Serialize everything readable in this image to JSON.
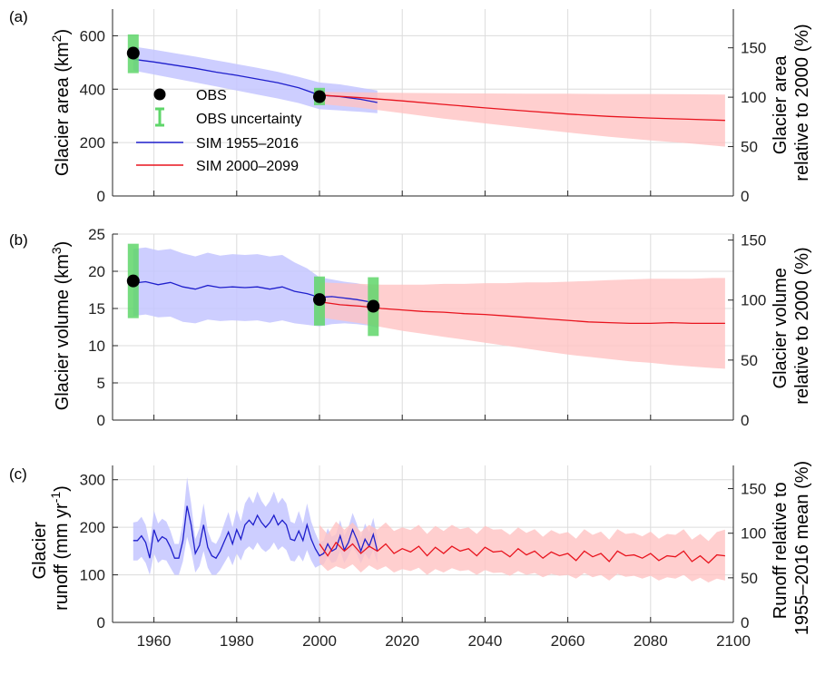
{
  "colors": {
    "sim_hist_line": "#1f1fcc",
    "sim_hist_band": "#c4c6ff",
    "sim_fut_line": "#e8141e",
    "sim_fut_band": "#ffc3c3",
    "obs_marker": "#000000",
    "obs_uncertainty": "#5fd66a"
  },
  "legend": {
    "obs": "OBS",
    "obs_uncertainty": "OBS uncertainty",
    "sim_hist": "SIM 1955–2016",
    "sim_fut": "SIM 2000–2099"
  },
  "chart_data": [
    {
      "type": "line",
      "panel_label": "(a)",
      "ylabel": "Glacier area (km²)",
      "ylabel_main": "Glacier area (km",
      "ylabel_sup": "2",
      "ylabel_end": ")",
      "y2label_line1": "Glacier area",
      "y2label_line2": "relative to 2000 (%)",
      "xlim": [
        1950,
        2100
      ],
      "ylim": [
        0,
        700
      ],
      "yticks": [
        0,
        200,
        400,
        600
      ],
      "y2lim": [
        0,
        189.2
      ],
      "y2ticks": [
        0,
        50,
        100,
        150
      ],
      "grid": true,
      "legend_position": "top-left",
      "obs": [
        {
          "x": 1955,
          "y": 535,
          "low": 460,
          "high": 605
        },
        {
          "x": 2000,
          "y": 372,
          "low": 340,
          "high": 405
        }
      ],
      "series": [
        {
          "name": "SIM 1955–2016",
          "color": "#1f1fcc",
          "band_color": "#c4c6ff",
          "x": [
            1955,
            1960,
            1965,
            1970,
            1975,
            1980,
            1985,
            1990,
            1995,
            2000,
            2005,
            2010,
            2014
          ],
          "y": [
            512,
            502,
            490,
            478,
            464,
            452,
            438,
            424,
            405,
            378,
            372,
            362,
            350
          ],
          "y_low": [
            470,
            455,
            440,
            425,
            410,
            395,
            380,
            365,
            348,
            325,
            320,
            315,
            310
          ],
          "y_high": [
            560,
            548,
            535,
            522,
            508,
            494,
            480,
            465,
            446,
            425,
            418,
            405,
            395
          ]
        },
        {
          "name": "SIM 2000–2099",
          "color": "#e8141e",
          "band_color": "#ffc3c3",
          "x": [
            2000,
            2010,
            2020,
            2030,
            2040,
            2050,
            2060,
            2070,
            2080,
            2090,
            2098
          ],
          "y": [
            378,
            368,
            356,
            343,
            330,
            318,
            307,
            298,
            292,
            287,
            283
          ],
          "y_low": [
            345,
            330,
            310,
            290,
            272,
            255,
            238,
            222,
            208,
            196,
            185
          ],
          "y_high": [
            390,
            388,
            386,
            385,
            384,
            383,
            383,
            382,
            382,
            381,
            380
          ]
        }
      ]
    },
    {
      "type": "line",
      "panel_label": "(b)",
      "ylabel": "Glacier volume (km³)",
      "ylabel_main": "Glacier volume (km",
      "ylabel_sup": "3",
      "ylabel_end": ")",
      "y2label_line1": "Glacier volume",
      "y2label_line2": "relative to 2000 (%)",
      "xlim": [
        1950,
        2100
      ],
      "ylim": [
        0,
        25
      ],
      "yticks": [
        0,
        5,
        10,
        15,
        20,
        25
      ],
      "y2lim": [
        0,
        155
      ],
      "y2ticks": [
        0,
        50,
        100,
        150
      ],
      "grid": true,
      "obs": [
        {
          "x": 1955,
          "y": 18.7,
          "low": 13.7,
          "high": 23.7
        },
        {
          "x": 2000,
          "y": 16.2,
          "low": 12.7,
          "high": 19.3
        },
        {
          "x": 2013,
          "y": 15.3,
          "low": 11.3,
          "high": 19.2
        }
      ],
      "series": [
        {
          "name": "SIM 1955–2016",
          "color": "#1f1fcc",
          "band_color": "#c4c6ff",
          "x": [
            1955,
            1958,
            1961,
            1964,
            1967,
            1970,
            1973,
            1976,
            1979,
            1982,
            1985,
            1988,
            1991,
            1994,
            1997,
            2000,
            2003,
            2006,
            2009,
            2012,
            2014
          ],
          "y": [
            18.4,
            18.6,
            18.2,
            18.5,
            17.9,
            17.6,
            18.1,
            17.8,
            17.9,
            17.8,
            17.9,
            17.6,
            17.9,
            17.3,
            17.0,
            16.5,
            16.6,
            16.4,
            16.2,
            15.9,
            15.4
          ],
          "y_low": [
            14.0,
            14.2,
            13.8,
            13.9,
            13.2,
            13.0,
            13.5,
            13.3,
            13.4,
            13.3,
            13.4,
            13.1,
            13.4,
            13.0,
            12.8,
            12.6,
            12.9,
            13.0,
            12.9,
            12.7,
            12.4
          ],
          "y_high": [
            23.0,
            23.2,
            22.8,
            23.0,
            22.4,
            22.0,
            22.5,
            22.1,
            22.3,
            22.2,
            22.3,
            22.0,
            22.2,
            21.2,
            20.4,
            19.2,
            18.9,
            18.6,
            18.4,
            18.0,
            17.6
          ]
        },
        {
          "name": "SIM 2000–2099",
          "color": "#e8141e",
          "band_color": "#ffc3c3",
          "x": [
            2000,
            2005,
            2010,
            2015,
            2020,
            2025,
            2030,
            2035,
            2040,
            2045,
            2050,
            2055,
            2060,
            2065,
            2070,
            2075,
            2080,
            2085,
            2090,
            2095,
            2098
          ],
          "y": [
            15.9,
            15.5,
            15.3,
            15.0,
            14.8,
            14.6,
            14.5,
            14.3,
            14.2,
            14.0,
            13.8,
            13.6,
            13.4,
            13.2,
            13.1,
            13.0,
            13.0,
            13.1,
            13.0,
            13.0,
            13.0
          ],
          "y_low": [
            13.8,
            13.4,
            13.0,
            12.5,
            12.0,
            11.6,
            11.2,
            10.8,
            10.4,
            10.0,
            9.6,
            9.2,
            8.8,
            8.5,
            8.2,
            7.9,
            7.7,
            7.4,
            7.2,
            7.0,
            6.9
          ],
          "y_high": [
            18.5,
            18.4,
            18.3,
            18.2,
            18.2,
            18.2,
            18.3,
            18.3,
            18.4,
            18.4,
            18.5,
            18.5,
            18.6,
            18.7,
            18.8,
            18.9,
            19.0,
            19.0,
            19.0,
            19.1,
            19.1
          ]
        }
      ]
    },
    {
      "type": "line",
      "panel_label": "(c)",
      "ylabel_line1": "Glacier",
      "ylabel_line2_main": "runoff (mm yr",
      "ylabel_line2_sup": "-1",
      "ylabel_line2_end": ")",
      "y2label_line1": "Runoff relative to",
      "y2label_line2": "1955–2016 mean (%)",
      "xlim": [
        1950,
        2100
      ],
      "ylim": [
        0,
        330
      ],
      "yticks": [
        0,
        100,
        200,
        300
      ],
      "y2lim": [
        0,
        176
      ],
      "y2ticks": [
        0,
        50,
        100,
        150
      ],
      "xticks": [
        1960,
        1980,
        2000,
        2020,
        2040,
        2060,
        2080,
        2100
      ],
      "grid": true,
      "series": [
        {
          "name": "SIM 1955–2016",
          "color": "#1f1fcc",
          "band_color": "#c4c6ff",
          "x": [
            1955,
            1956,
            1957,
            1958,
            1959,
            1960,
            1961,
            1962,
            1963,
            1964,
            1965,
            1966,
            1967,
            1968,
            1969,
            1970,
            1971,
            1972,
            1973,
            1974,
            1975,
            1976,
            1977,
            1978,
            1979,
            1980,
            1981,
            1982,
            1983,
            1984,
            1985,
            1986,
            1987,
            1988,
            1989,
            1990,
            1991,
            1992,
            1993,
            1994,
            1995,
            1996,
            1997,
            1998,
            1999,
            2000,
            2001,
            2002,
            2003,
            2004,
            2005,
            2006,
            2007,
            2008,
            2009,
            2010,
            2011,
            2012,
            2013,
            2014
          ],
          "y": [
            172,
            172,
            182,
            168,
            135,
            195,
            170,
            180,
            175,
            158,
            135,
            135,
            172,
            245,
            205,
            145,
            162,
            205,
            158,
            140,
            135,
            150,
            170,
            190,
            165,
            195,
            175,
            205,
            215,
            205,
            225,
            210,
            200,
            210,
            225,
            205,
            215,
            205,
            175,
            172,
            192,
            172,
            205,
            175,
            155,
            140,
            145,
            165,
            150,
            155,
            182,
            152,
            168,
            195,
            175,
            150,
            175,
            160,
            185,
            150
          ],
          "y_low": [
            130,
            130,
            138,
            125,
            100,
            145,
            125,
            132,
            130,
            115,
            100,
            100,
            128,
            180,
            150,
            105,
            118,
            150,
            115,
            100,
            100,
            110,
            125,
            140,
            120,
            145,
            130,
            152,
            160,
            152,
            168,
            155,
            148,
            155,
            168,
            152,
            160,
            152,
            130,
            128,
            142,
            128,
            152,
            130,
            115,
            120,
            122,
            138,
            125,
            128,
            150,
            125,
            140,
            160,
            145,
            124,
            145,
            132,
            152,
            124
          ],
          "y_high": [
            210,
            212,
            222,
            205,
            165,
            235,
            208,
            218,
            212,
            192,
            165,
            165,
            210,
            305,
            250,
            175,
            198,
            250,
            192,
            170,
            165,
            182,
            208,
            232,
            200,
            238,
            212,
            250,
            265,
            250,
            275,
            255,
            243,
            255,
            275,
            250,
            262,
            250,
            212,
            208,
            234,
            208,
            250,
            212,
            188,
            168,
            172,
            198,
            180,
            185,
            215,
            182,
            200,
            230,
            208,
            178,
            208,
            190,
            220,
            178
          ]
        },
        {
          "name": "SIM 2000–2099",
          "color": "#e8141e",
          "band_color": "#ffc3c3",
          "x": [
            2000,
            2002,
            2004,
            2006,
            2008,
            2010,
            2012,
            2014,
            2016,
            2018,
            2020,
            2022,
            2024,
            2026,
            2028,
            2030,
            2032,
            2034,
            2036,
            2038,
            2040,
            2042,
            2044,
            2046,
            2048,
            2050,
            2052,
            2054,
            2056,
            2058,
            2060,
            2062,
            2064,
            2066,
            2068,
            2070,
            2072,
            2074,
            2076,
            2078,
            2080,
            2082,
            2084,
            2086,
            2088,
            2090,
            2092,
            2094,
            2096,
            2098
          ],
          "y": [
            165,
            140,
            168,
            150,
            165,
            145,
            160,
            150,
            165,
            145,
            155,
            148,
            160,
            140,
            158,
            145,
            160,
            150,
            155,
            140,
            158,
            148,
            150,
            138,
            155,
            142,
            150,
            135,
            148,
            140,
            145,
            130,
            150,
            138,
            145,
            128,
            150,
            140,
            142,
            135,
            145,
            130,
            140,
            138,
            150,
            128,
            140,
            125,
            142,
            140
          ],
          "y_low": [
            125,
            108,
            118,
            112,
            122,
            105,
            120,
            110,
            118,
            105,
            112,
            108,
            115,
            100,
            112,
            105,
            114,
            108,
            110,
            100,
            110,
            104,
            105,
            98,
            108,
            100,
            104,
            95,
            102,
            98,
            100,
            92,
            104,
            95,
            100,
            88,
            102,
            96,
            98,
            92,
            98,
            88,
            95,
            92,
            100,
            86,
            94,
            84,
            92,
            88
          ],
          "y_high": [
            205,
            185,
            212,
            195,
            210,
            190,
            205,
            195,
            210,
            192,
            200,
            194,
            205,
            186,
            203,
            192,
            205,
            196,
            200,
            186,
            203,
            195,
            196,
            184,
            200,
            188,
            196,
            180,
            194,
            186,
            190,
            176,
            196,
            184,
            191,
            174,
            196,
            186,
            188,
            181,
            191,
            176,
            186,
            184,
            196,
            174,
            186,
            171,
            190,
            195
          ]
        }
      ]
    }
  ]
}
